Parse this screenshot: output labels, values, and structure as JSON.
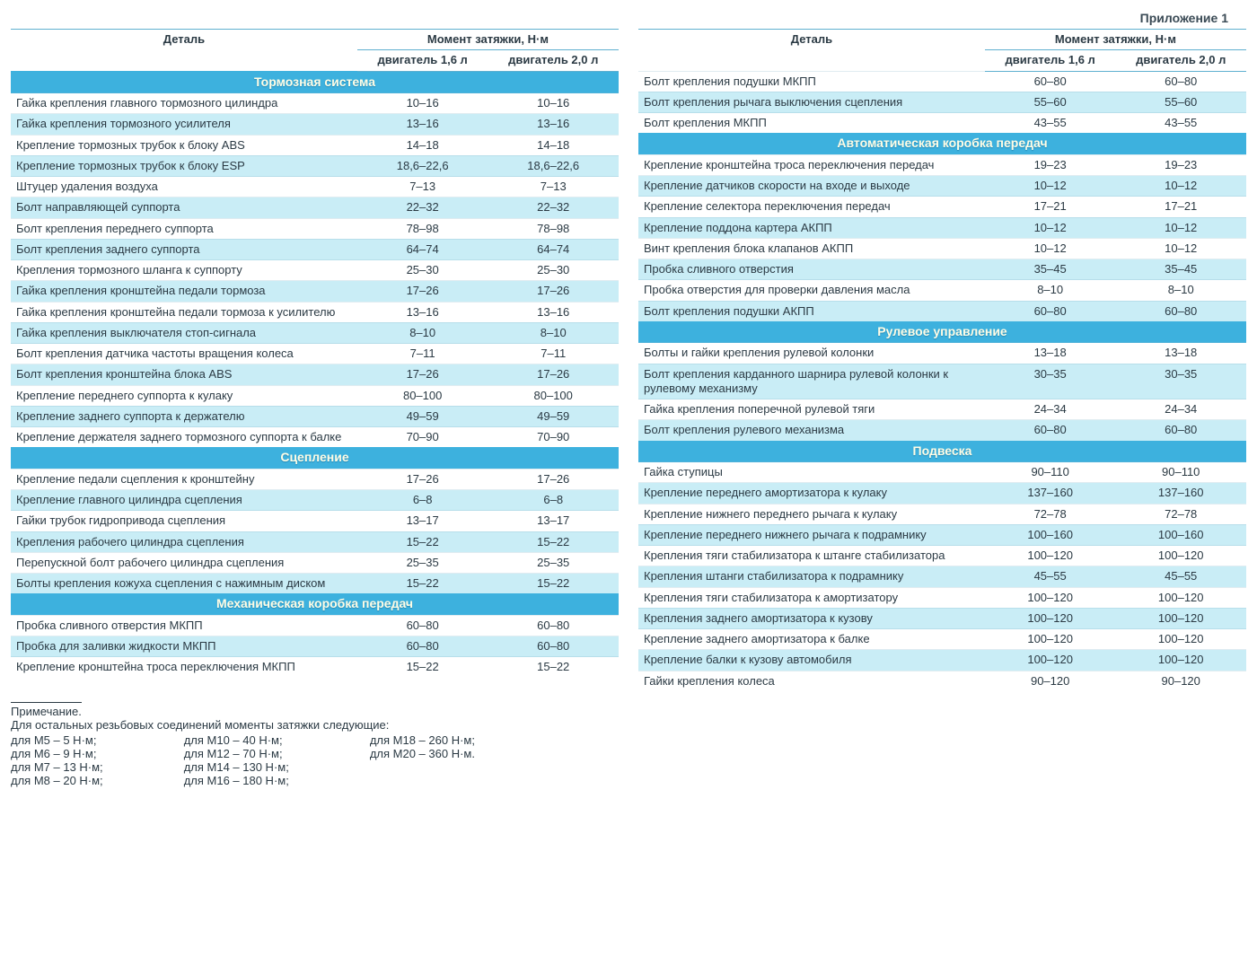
{
  "appendix_label": "Приложение 1",
  "headers": {
    "detail": "Деталь",
    "torque": "Момент затяжки, Н·м",
    "engine16": "двигатель 1,6 л",
    "engine20": "двигатель 2,0 л"
  },
  "left_sections": [
    {
      "title": "Тормозная система",
      "rows": [
        {
          "d": "Гайка крепления главного тормозного цилиндра",
          "v1": "10–16",
          "v2": "10–16"
        },
        {
          "d": "Гайка крепления тормозного усилителя",
          "v1": "13–16",
          "v2": "13–16"
        },
        {
          "d": "Крепление тормозных трубок к блоку ABS",
          "v1": "14–18",
          "v2": "14–18"
        },
        {
          "d": "Крепление тормозных трубок к блоку ESP",
          "v1": "18,6–22,6",
          "v2": "18,6–22,6"
        },
        {
          "d": "Штуцер удаления воздуха",
          "v1": "7–13",
          "v2": "7–13"
        },
        {
          "d": "Болт направляющей суппорта",
          "v1": "22–32",
          "v2": "22–32"
        },
        {
          "d": "Болт крепления переднего суппорта",
          "v1": "78–98",
          "v2": "78–98"
        },
        {
          "d": "Болт крепления заднего суппорта",
          "v1": "64–74",
          "v2": "64–74"
        },
        {
          "d": "Крепления тормозного шланга к суппорту",
          "v1": "25–30",
          "v2": "25–30"
        },
        {
          "d": "Гайка крепления кронштейна педали тормоза",
          "v1": "17–26",
          "v2": "17–26"
        },
        {
          "d": "Гайка крепления кронштейна педали тормоза к усилителю",
          "v1": "13–16",
          "v2": "13–16"
        },
        {
          "d": "Гайка крепления выключателя стоп-сигнала",
          "v1": "8–10",
          "v2": "8–10"
        },
        {
          "d": "Болт крепления датчика частоты вращения колеса",
          "v1": "7–11",
          "v2": "7–11"
        },
        {
          "d": "Болт крепления кронштейна блока ABS",
          "v1": "17–26",
          "v2": "17–26"
        },
        {
          "d": "Крепление переднего суппорта к кулаку",
          "v1": "80–100",
          "v2": "80–100"
        },
        {
          "d": "Крепление заднего суппорта к держателю",
          "v1": "49–59",
          "v2": "49–59"
        },
        {
          "d": "Крепление держателя заднего тормозного суппорта к балке",
          "v1": "70–90",
          "v2": "70–90"
        }
      ]
    },
    {
      "title": "Сцепление",
      "rows": [
        {
          "d": "Крепление педали сцепления к кронштейну",
          "v1": "17–26",
          "v2": "17–26"
        },
        {
          "d": "Крепление главного цилиндра сцепления",
          "v1": "6–8",
          "v2": "6–8"
        },
        {
          "d": "Гайки трубок гидропривода сцепления",
          "v1": "13–17",
          "v2": "13–17"
        },
        {
          "d": "Крепления рабочего цилиндра сцепления",
          "v1": "15–22",
          "v2": "15–22"
        },
        {
          "d": "Перепускной болт рабочего цилиндра сцепления",
          "v1": "25–35",
          "v2": "25–35"
        },
        {
          "d": "Болты крепления кожуха сцепления с нажимным диском",
          "v1": "15–22",
          "v2": "15–22"
        }
      ]
    },
    {
      "title": "Механическая коробка передач",
      "rows": [
        {
          "d": "Пробка сливного отверстия МКПП",
          "v1": "60–80",
          "v2": "60–80"
        },
        {
          "d": "Пробка для заливки жидкости МКПП",
          "v1": "60–80",
          "v2": "60–80"
        },
        {
          "d": "Крепление кронштейна троса переключения МКПП",
          "v1": "15–22",
          "v2": "15–22"
        }
      ]
    }
  ],
  "right_pre_rows": [
    {
      "d": "Болт крепления подушки МКПП",
      "v1": "60–80",
      "v2": "60–80"
    },
    {
      "d": "Болт крепления рычага выключения сцепления",
      "v1": "55–60",
      "v2": "55–60"
    },
    {
      "d": "Болт крепления МКПП",
      "v1": "43–55",
      "v2": "43–55"
    }
  ],
  "right_sections": [
    {
      "title": "Автоматическая коробка передач",
      "rows": [
        {
          "d": "Крепление кронштейна троса переключения передач",
          "v1": "19–23",
          "v2": "19–23"
        },
        {
          "d": "Крепление датчиков скорости на входе и выходе",
          "v1": "10–12",
          "v2": "10–12"
        },
        {
          "d": "Крепление селектора переключения передач",
          "v1": "17–21",
          "v2": "17–21"
        },
        {
          "d": "Крепление поддона картера АКПП",
          "v1": "10–12",
          "v2": "10–12"
        },
        {
          "d": "Винт крепления блока клапанов АКПП",
          "v1": "10–12",
          "v2": "10–12"
        },
        {
          "d": "Пробка сливного отверстия",
          "v1": "35–45",
          "v2": "35–45"
        },
        {
          "d": "Пробка отверстия для проверки давления масла",
          "v1": "8–10",
          "v2": "8–10"
        },
        {
          "d": "Болт крепления подушки АКПП",
          "v1": "60–80",
          "v2": "60–80"
        }
      ]
    },
    {
      "title": "Рулевое управление",
      "rows": [
        {
          "d": "Болты и гайки крепления рулевой колонки",
          "v1": "13–18",
          "v2": "13–18"
        },
        {
          "d": "Болт крепления карданного шарнира рулевой колонки к рулевому механизму",
          "v1": "30–35",
          "v2": "30–35"
        },
        {
          "d": "Гайка крепления поперечной рулевой тяги",
          "v1": "24–34",
          "v2": "24–34"
        },
        {
          "d": "Болт крепления рулевого механизма",
          "v1": "60–80",
          "v2": "60–80"
        }
      ]
    },
    {
      "title": "Подвеска",
      "rows": [
        {
          "d": "Гайка ступицы",
          "v1": "90–110",
          "v2": "90–110"
        },
        {
          "d": "Крепление переднего амортизатора к кулаку",
          "v1": "137–160",
          "v2": "137–160"
        },
        {
          "d": "Крепление нижнего переднего рычага к кулаку",
          "v1": "72–78",
          "v2": "72–78"
        },
        {
          "d": "Крепление переднего нижнего рычага к подрамнику",
          "v1": "100–160",
          "v2": "100–160"
        },
        {
          "d": "Крепления тяги стабилизатора к штанге стабилизатора",
          "v1": "100–120",
          "v2": "100–120"
        },
        {
          "d": "Крепления штанги стабилизатора к подрамнику",
          "v1": "45–55",
          "v2": "45–55"
        },
        {
          "d": "Крепления тяги стабилизатора к амортизатору",
          "v1": "100–120",
          "v2": "100–120"
        },
        {
          "d": "Крепления заднего амортизатора к кузову",
          "v1": "100–120",
          "v2": "100–120"
        },
        {
          "d": "Крепление заднего амортизатора к балке",
          "v1": "100–120",
          "v2": "100–120"
        },
        {
          "d": "Крепление балки к кузову автомобиля",
          "v1": "100–120",
          "v2": "100–120"
        },
        {
          "d": "Гайки крепления колеса",
          "v1": "90–120",
          "v2": "90–120"
        }
      ]
    }
  ],
  "footnote": {
    "title": "Примечание.",
    "intro": "Для остальных резьбовых соединений моменты затяжки следующие:",
    "col1": [
      "для М5 – 5 Н·м;",
      "для М6 – 9 Н·м;",
      "для М7 – 13 Н·м;",
      "для М8 – 20 Н·м;"
    ],
    "col2": [
      "для М10 – 40 Н·м;",
      "для М12 – 70 Н·м;",
      "для М14 – 130 Н·м;",
      "для М16 – 180 Н·м;"
    ],
    "col3": [
      "для М18 – 260 Н·м;",
      "для М20 – 360 Н·м."
    ]
  },
  "colors": {
    "section_header_bg": "#3db1de",
    "section_header_text": "#fffde6",
    "row_alt_bg": "#c9edf6",
    "text": "#2b3a44"
  }
}
